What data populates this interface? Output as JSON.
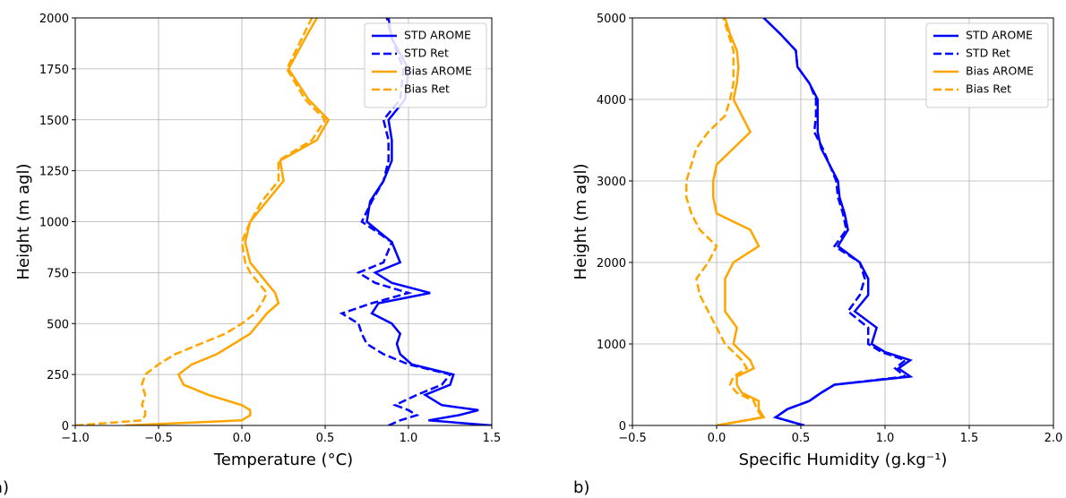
{
  "chart_data": [
    {
      "type": "line",
      "panel_label": "a)",
      "xlabel": "Temperature (°C)",
      "ylabel": "Height (m agl)",
      "y": [
        0,
        25,
        50,
        75,
        100,
        150,
        200,
        250,
        300,
        350,
        400,
        450,
        500,
        550,
        600,
        650,
        700,
        750,
        800,
        900,
        1000,
        1100,
        1200,
        1300,
        1400,
        1500,
        1600,
        1750,
        1900,
        2000
      ],
      "series": [
        {
          "name": "STD AROME",
          "color": "#0000ff",
          "linestyle": "solid",
          "values": [
            1.5,
            1.12,
            1.3,
            1.42,
            1.2,
            1.1,
            1.25,
            1.27,
            1.02,
            0.95,
            0.93,
            0.95,
            0.9,
            0.78,
            0.82,
            1.13,
            0.9,
            0.8,
            0.95,
            0.9,
            0.75,
            0.77,
            0.85,
            0.9,
            0.9,
            0.88,
            0.98,
            1.0,
            0.9,
            0.88
          ]
        },
        {
          "name": "STD Ret",
          "color": "#0000ff",
          "linestyle": "dashed",
          "values": [
            0.88,
            0.95,
            1.05,
            1.0,
            0.92,
            1.05,
            1.2,
            1.25,
            1.0,
            0.85,
            0.75,
            0.72,
            0.7,
            0.6,
            0.78,
            1.0,
            0.8,
            0.7,
            0.85,
            0.9,
            0.72,
            0.78,
            0.85,
            0.88,
            0.88,
            0.85,
            0.95,
            0.97,
            0.9,
            0.87
          ]
        },
        {
          "name": "Bias AROME",
          "color": "#ffa500",
          "linestyle": "solid",
          "values": [
            -0.7,
            0.0,
            0.05,
            0.05,
            0.0,
            -0.2,
            -0.35,
            -0.38,
            -0.3,
            -0.15,
            -0.05,
            0.05,
            0.1,
            0.15,
            0.22,
            0.2,
            0.15,
            0.1,
            0.05,
            0.02,
            0.05,
            0.15,
            0.25,
            0.23,
            0.45,
            0.52,
            0.4,
            0.28,
            0.38,
            0.45
          ]
        },
        {
          "name": "Bias Ret",
          "color": "#ffa500",
          "linestyle": "dashed",
          "values": [
            -1.0,
            -0.6,
            -0.58,
            -0.58,
            -0.6,
            -0.58,
            -0.6,
            -0.58,
            -0.5,
            -0.4,
            -0.25,
            -0.1,
            0.0,
            0.08,
            0.12,
            0.15,
            0.1,
            0.05,
            0.02,
            0.0,
            0.05,
            0.12,
            0.22,
            0.22,
            0.42,
            0.5,
            0.38,
            0.27,
            0.36,
            0.42
          ]
        }
      ],
      "xlim": [
        -1.0,
        1.5
      ],
      "ylim": [
        0,
        2000
      ],
      "xticks": [
        {
          "value": -1.0,
          "label": "−1.0"
        },
        {
          "value": -0.5,
          "label": "−0.5"
        },
        {
          "value": 0,
          "label": "0.0"
        },
        0.5,
        {
          "value": 1,
          "label": "1.0"
        },
        1.5
      ],
      "yticks": [
        0,
        250,
        500,
        750,
        1000,
        1250,
        1500,
        1750,
        2000
      ],
      "grid": true,
      "legend": "upper right"
    },
    {
      "type": "line",
      "panel_label": "b)",
      "xlabel": "Specific Humidity (g.kg⁻¹)",
      "ylabel": "Height (m agl)",
      "y": [
        0,
        100,
        200,
        300,
        400,
        500,
        600,
        700,
        800,
        900,
        1000,
        1200,
        1400,
        1600,
        1800,
        2000,
        2200,
        2400,
        2600,
        2800,
        3000,
        3200,
        3400,
        3600,
        3800,
        4000,
        4200,
        4400,
        4600,
        4800,
        5000
      ],
      "series": [
        {
          "name": "STD AROME",
          "color": "#0000ff",
          "linestyle": "solid",
          "values": [
            0.52,
            0.35,
            0.42,
            0.55,
            0.62,
            0.7,
            1.15,
            1.08,
            1.15,
            1.0,
            0.92,
            0.95,
            0.82,
            0.9,
            0.9,
            0.85,
            0.72,
            0.78,
            0.76,
            0.73,
            0.72,
            0.67,
            0.62,
            0.6,
            0.6,
            0.6,
            0.55,
            0.48,
            0.47,
            0.38,
            0.28
          ]
        },
        {
          "name": "STD Ret",
          "color": "#0000ff",
          "linestyle": "dashed",
          "values": [
            0.52,
            0.35,
            0.42,
            0.55,
            0.62,
            0.7,
            1.12,
            1.06,
            1.12,
            0.98,
            0.9,
            0.9,
            0.78,
            0.85,
            0.88,
            0.85,
            0.7,
            0.77,
            0.75,
            0.72,
            0.71,
            0.67,
            0.63,
            0.58,
            0.59,
            0.59,
            0.55,
            0.48,
            0.47,
            0.38,
            0.28
          ]
        },
        {
          "name": "Bias AROME",
          "color": "#ffa500",
          "linestyle": "solid",
          "values": [
            0.0,
            0.28,
            0.25,
            0.25,
            0.15,
            0.12,
            0.12,
            0.22,
            0.2,
            0.15,
            0.1,
            0.12,
            0.05,
            0.05,
            0.05,
            0.1,
            0.25,
            0.2,
            0.0,
            -0.02,
            -0.02,
            0.0,
            0.1,
            0.2,
            0.15,
            0.1,
            0.12,
            0.13,
            0.12,
            0.08,
            0.05
          ]
        },
        {
          "name": "Bias Ret",
          "color": "#ffa500",
          "linestyle": "dashed",
          "values": [
            0.0,
            0.27,
            0.24,
            0.22,
            0.12,
            0.08,
            0.1,
            0.18,
            0.15,
            0.1,
            0.05,
            0.0,
            -0.05,
            -0.1,
            -0.12,
            -0.05,
            0.0,
            -0.1,
            -0.15,
            -0.18,
            -0.18,
            -0.15,
            -0.12,
            -0.05,
            0.05,
            0.08,
            0.1,
            0.1,
            0.1,
            0.07,
            0.04
          ]
        }
      ],
      "xlim": [
        -0.5,
        2.0
      ],
      "ylim": [
        0,
        5000
      ],
      "xticks": [
        {
          "value": -0.5,
          "label": "−0.5"
        },
        {
          "value": 0,
          "label": "0.0"
        },
        0.5,
        {
          "value": 1,
          "label": "1.0"
        },
        1.5,
        {
          "value": 2,
          "label": "2.0"
        }
      ],
      "yticks": [
        0,
        1000,
        2000,
        3000,
        4000,
        5000
      ],
      "grid": true,
      "legend": "upper right"
    }
  ]
}
